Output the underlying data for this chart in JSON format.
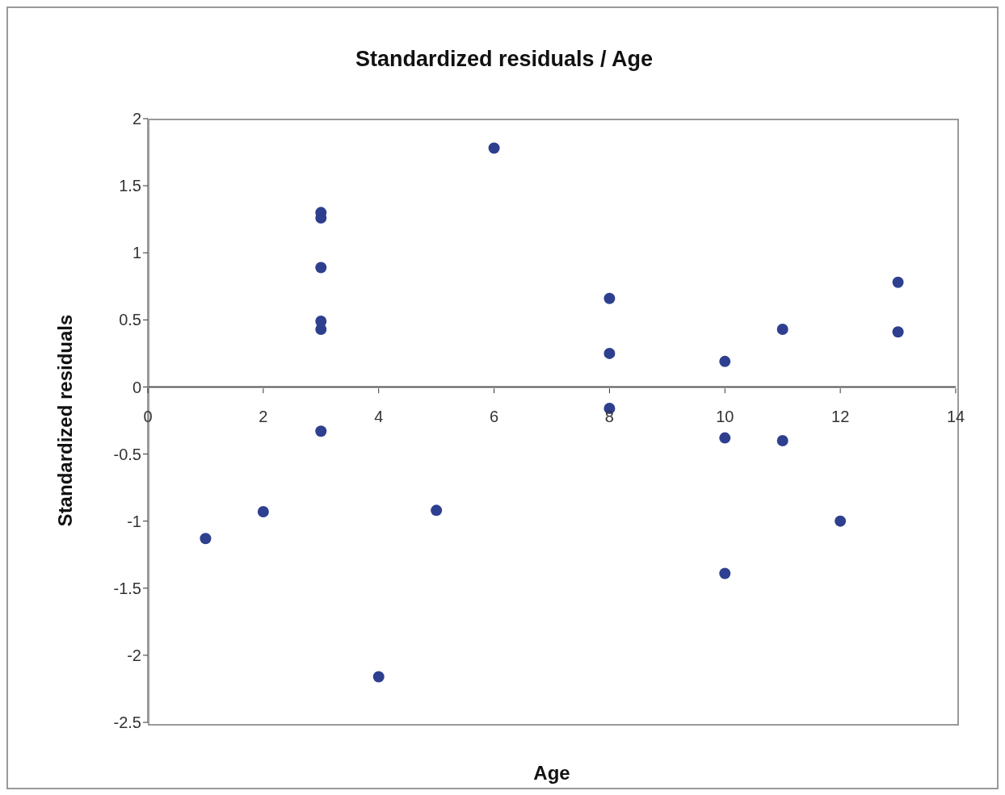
{
  "chart_data": {
    "type": "scatter",
    "title": "Standardized residuals / Age",
    "xlabel": "Age",
    "ylabel": "Standardized residuals",
    "x": [
      1,
      2,
      3,
      3,
      3,
      3,
      3,
      3,
      4,
      5,
      6,
      8,
      8,
      8,
      10,
      10,
      10,
      11,
      11,
      12,
      13,
      13
    ],
    "series": [
      {
        "color": "#2e3f8f",
        "values": [
          -1.13,
          -0.93,
          1.3,
          1.26,
          0.89,
          0.49,
          0.43,
          -0.33,
          -2.16,
          -0.92,
          1.78,
          0.66,
          0.25,
          -0.16,
          0.19,
          -0.38,
          -1.39,
          0.43,
          -0.4,
          -1.0,
          0.78,
          0.41
        ]
      }
    ],
    "xlim": [
      0,
      14
    ],
    "xticks": [
      0,
      2,
      4,
      6,
      8,
      10,
      12,
      14
    ],
    "ylim": [
      -2.5,
      2
    ],
    "yticks": [
      -2.5,
      -2,
      -1.5,
      -1,
      -0.5,
      0,
      0.5,
      1,
      1.5,
      2
    ],
    "grid": false,
    "marker": "circle"
  }
}
